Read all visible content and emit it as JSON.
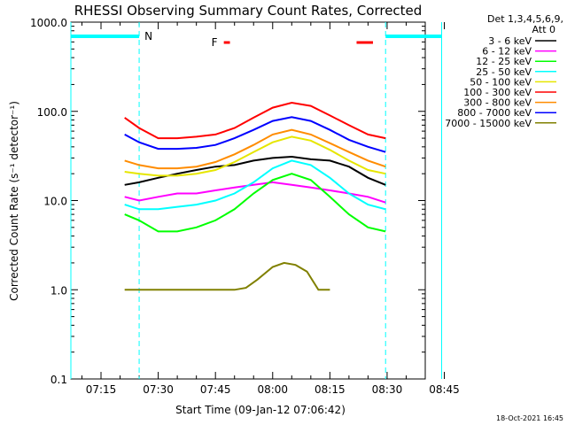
{
  "chart_data": {
    "type": "line",
    "title": "RHESSI Observing Summary Count Rates, Corrected",
    "xlabel": "Start Time (09-Jan-12 07:06:42)",
    "ylabel": "Corrected Count Rate (s⁻¹ detector⁻¹)",
    "y_scale": "log",
    "ylim": [
      0.1,
      1000
    ],
    "yticks": [
      "0.1",
      "1.0",
      "10.0",
      "100.0",
      "1000.0"
    ],
    "xlim_minutes": [
      7.1,
      100.0
    ],
    "xticks": [
      {
        "label": "07:15",
        "minutes": 15
      },
      {
        "label": "07:30",
        "minutes": 30
      },
      {
        "label": "07:45",
        "minutes": 45
      },
      {
        "label": "08:00",
        "minutes": 60
      },
      {
        "label": "08:15",
        "minutes": 75
      },
      {
        "label": "08:30",
        "minutes": 90
      },
      {
        "label": "08:45",
        "minutes": 105
      }
    ],
    "legend_header": [
      "Det 1,3,4,5,6,9,",
      "Att 0"
    ],
    "legend_position": "right, outside plot",
    "data_window_minutes": [
      21.2,
      89.6
    ],
    "series": [
      {
        "name": "3 - 6 keV",
        "color": "#000000",
        "x": [
          21.2,
          25,
          30,
          35,
          40,
          45,
          50,
          55,
          60,
          65,
          70,
          75,
          80,
          85,
          89.6
        ],
        "y": [
          15,
          16,
          18,
          20,
          22,
          24,
          25,
          28,
          30,
          31,
          29,
          28,
          24,
          18,
          15
        ]
      },
      {
        "name": "6 - 12 keV",
        "color": "#ff00ff",
        "x": [
          21.2,
          25,
          30,
          35,
          40,
          45,
          50,
          55,
          60,
          65,
          70,
          75,
          80,
          85,
          89.6
        ],
        "y": [
          11,
          10,
          11,
          12,
          12,
          13,
          14,
          15,
          16,
          15,
          14,
          13,
          12,
          11,
          9.5
        ]
      },
      {
        "name": "12 - 25 keV",
        "color": "#00ff00",
        "x": [
          21.2,
          25,
          30,
          35,
          40,
          45,
          50,
          55,
          60,
          65,
          70,
          75,
          80,
          85,
          89.6
        ],
        "y": [
          7,
          6,
          4.5,
          4.5,
          5,
          6,
          8,
          12,
          17,
          20,
          17,
          11,
          7,
          5,
          4.5
        ]
      },
      {
        "name": "25 - 50 keV",
        "color": "#00ffff",
        "x": [
          21.2,
          25,
          30,
          35,
          40,
          45,
          50,
          55,
          60,
          65,
          70,
          75,
          80,
          85,
          89.6
        ],
        "y": [
          9,
          8,
          8,
          8.5,
          9,
          10,
          12,
          16,
          23,
          28,
          25,
          18,
          12,
          9,
          8
        ]
      },
      {
        "name": "50 - 100 keV",
        "color": "#e6e600",
        "x": [
          21.2,
          25,
          30,
          35,
          40,
          45,
          50,
          55,
          60,
          65,
          70,
          75,
          80,
          85,
          89.6
        ],
        "y": [
          21,
          20,
          19,
          19,
          20,
          22,
          27,
          35,
          45,
          52,
          47,
          37,
          28,
          22,
          20
        ]
      },
      {
        "name": "100 - 300 keV",
        "color": "#ff0000",
        "x": [
          21.2,
          25,
          30,
          35,
          40,
          45,
          50,
          55,
          60,
          65,
          70,
          75,
          80,
          85,
          89.6
        ],
        "y": [
          85,
          65,
          50,
          50,
          52,
          55,
          65,
          85,
          110,
          125,
          115,
          90,
          70,
          55,
          50
        ]
      },
      {
        "name": "300 - 800 keV",
        "color": "#ff8c00",
        "x": [
          21.2,
          25,
          30,
          35,
          40,
          45,
          50,
          55,
          60,
          65,
          70,
          75,
          80,
          85,
          89.6
        ],
        "y": [
          28,
          25,
          23,
          23,
          24,
          27,
          33,
          42,
          55,
          62,
          55,
          44,
          35,
          28,
          24
        ]
      },
      {
        "name": "800 - 7000 keV",
        "color": "#0000ff",
        "x": [
          21.2,
          25,
          30,
          35,
          40,
          45,
          50,
          55,
          60,
          65,
          70,
          75,
          80,
          85,
          89.6
        ],
        "y": [
          55,
          45,
          38,
          38,
          39,
          42,
          50,
          62,
          78,
          86,
          78,
          62,
          48,
          40,
          35
        ]
      },
      {
        "name": "7000 - 15000 keV",
        "color": "#808000",
        "x": [
          21.2,
          30,
          40,
          47,
          50,
          53,
          56,
          60,
          63,
          66,
          69,
          72,
          75
        ],
        "y": [
          1.0,
          1.0,
          1.0,
          1.0,
          1.0,
          1.05,
          1.3,
          1.8,
          2.0,
          1.9,
          1.6,
          1.0,
          1.0
        ]
      }
    ],
    "annotations": {
      "N_label": "N",
      "F_label": "F",
      "night_intervals_minutes": [
        [
          7.1,
          25.0
        ],
        [
          89.6,
          104.3
        ]
      ],
      "flare_intervals_minutes": [
        [
          47.2,
          48.8
        ],
        [
          82.0,
          86.3
        ]
      ]
    },
    "colors": {
      "night_bar": "#00ffff",
      "flare_marker": "#ff0000"
    }
  },
  "footer": {
    "timestamp": "18-Oct-2021 16:45"
  }
}
